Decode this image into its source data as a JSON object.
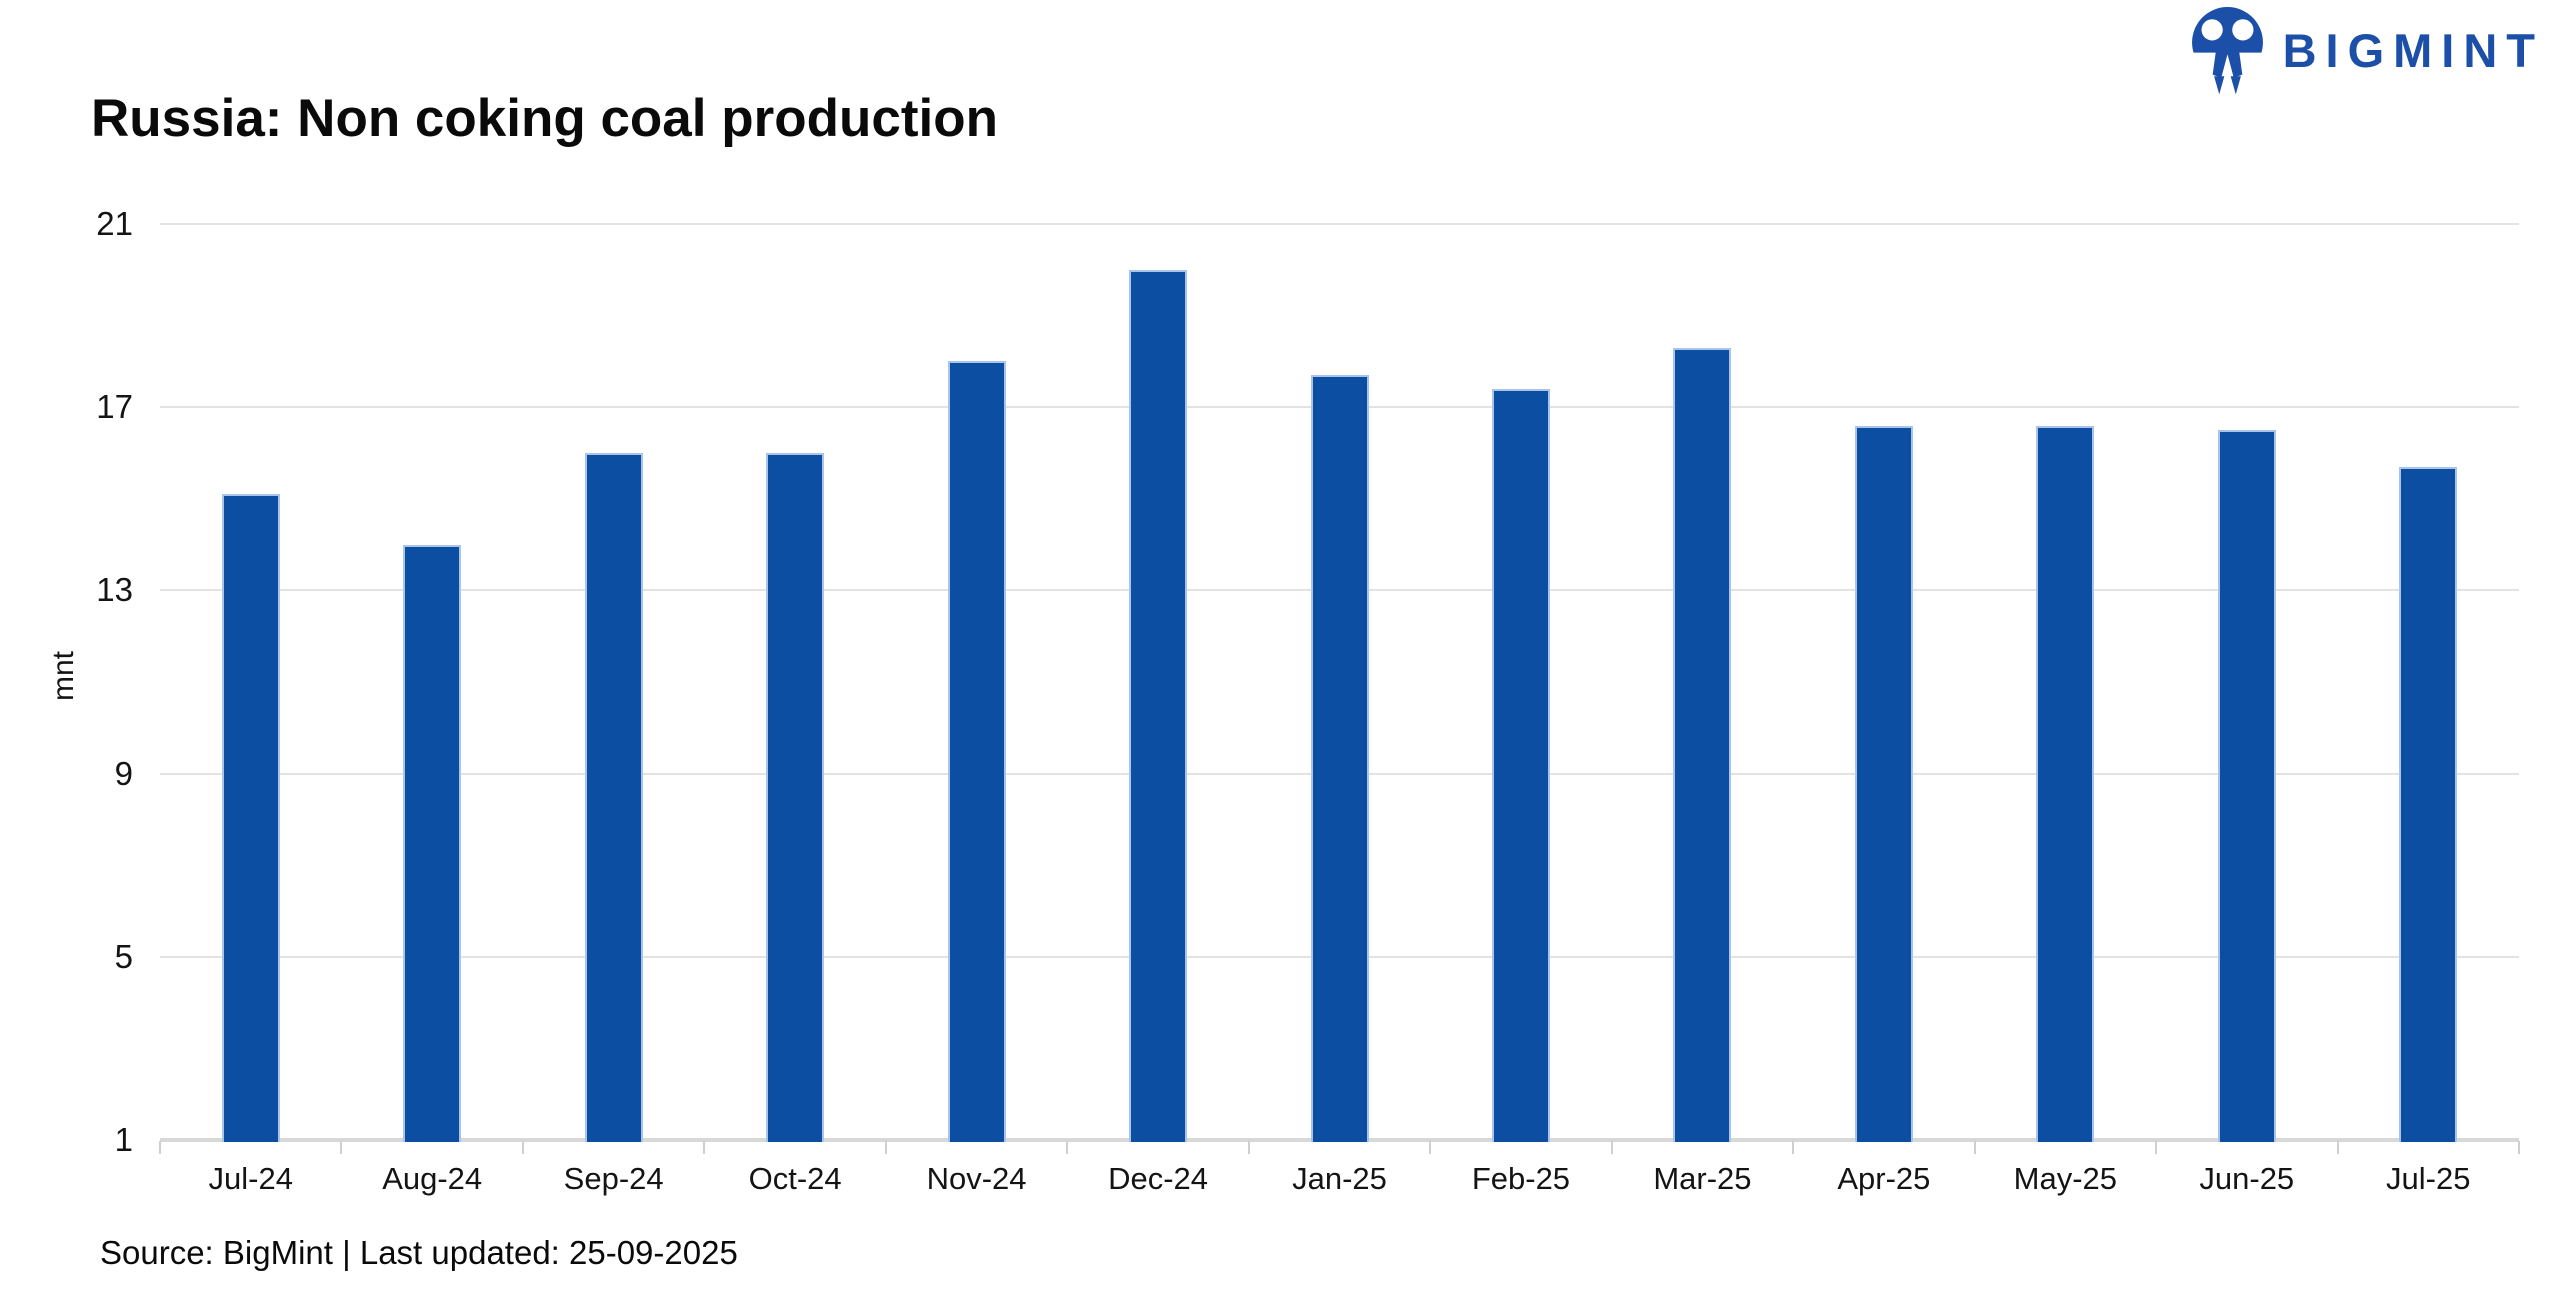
{
  "header": {
    "title": "Russia: Non coking coal production"
  },
  "brand": {
    "name": "BIGMINT",
    "color": "#1C4FA8"
  },
  "footer": {
    "source_line": "Source: BigMint | Last updated: 25-09-2025"
  },
  "chart_data": {
    "type": "bar",
    "title": "Russia: Non coking coal production",
    "categories": [
      "Jul-24",
      "Aug-24",
      "Sep-24",
      "Oct-24",
      "Nov-24",
      "Dec-24",
      "Jan-25",
      "Feb-25",
      "Mar-25",
      "Apr-25",
      "May-25",
      "Jun-25",
      "Jul-25"
    ],
    "values": [
      15.1,
      14.0,
      16.0,
      16.0,
      18.0,
      20.0,
      17.7,
      17.4,
      18.3,
      16.6,
      16.6,
      16.5,
      15.7
    ],
    "xlabel": "",
    "ylabel": "mnt",
    "ylim": [
      1,
      21
    ],
    "yticks": [
      1,
      5,
      9,
      13,
      17,
      21
    ],
    "grid": "horizontal",
    "legend": "none",
    "bar_color": "#0B4EA2",
    "bar_border_color": "#A9C4E6",
    "gridline_color": "#E3E3E3",
    "axisline_color": "#D8D8D8"
  }
}
